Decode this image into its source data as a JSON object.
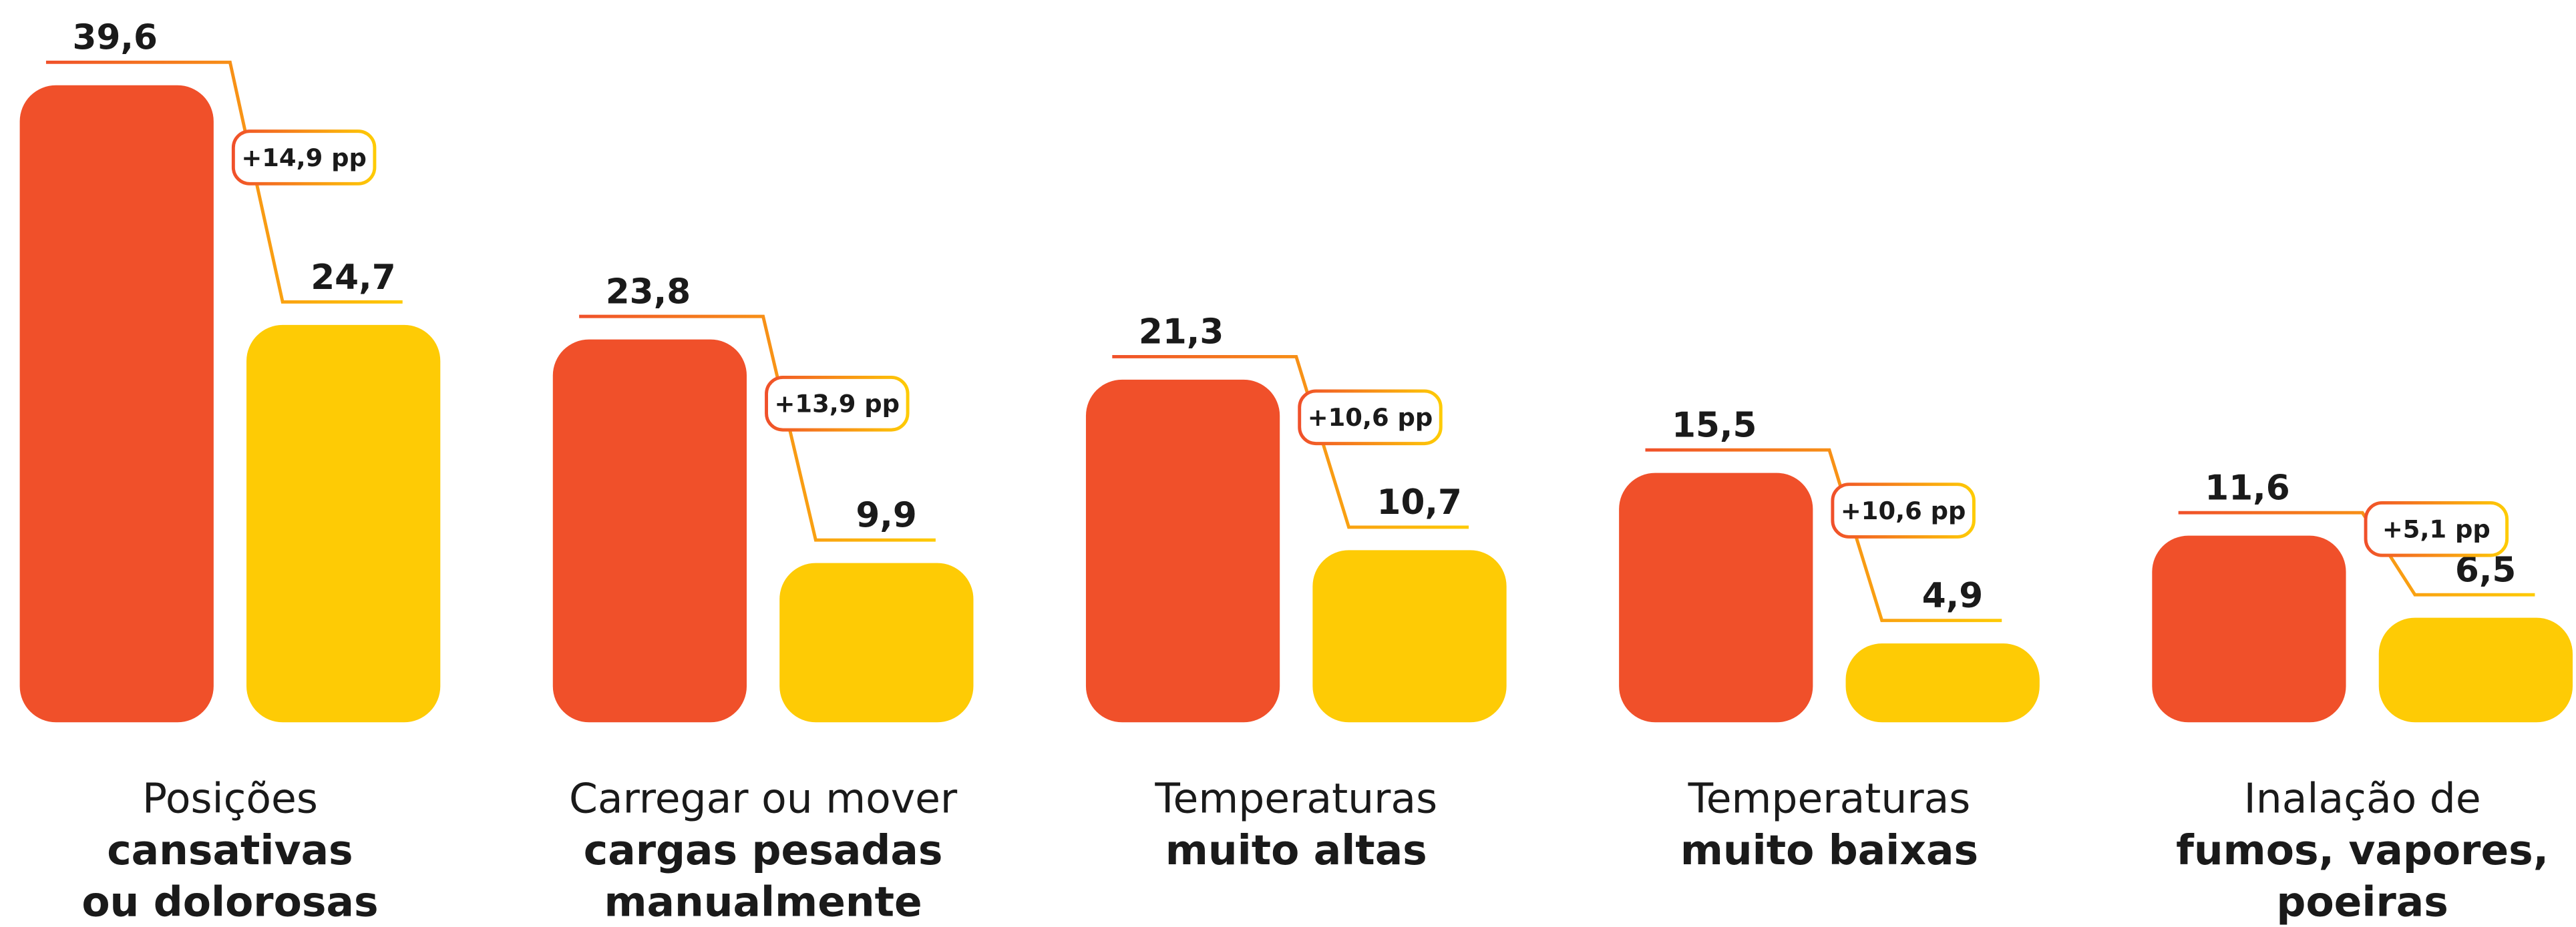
{
  "chart_data": {
    "type": "bar",
    "categories": [
      [
        "Posições",
        "cansativas",
        "ou dolorosas"
      ],
      [
        "Carregar ou mover",
        "cargas pesadas",
        "manualmente"
      ],
      [
        "Temperaturas",
        "muito altas"
      ],
      [
        "Temperaturas",
        "muito baixas"
      ],
      [
        "Inalação de",
        "fumos, vapores,",
        "poeiras"
      ]
    ],
    "series": [
      {
        "color": "#f0502a",
        "values": [
          39.6,
          23.8,
          21.3,
          15.5,
          11.6
        ],
        "value_labels": [
          "39,6",
          "23,8",
          "21,3",
          "15,5",
          "11,6"
        ]
      },
      {
        "color": "#fecb05",
        "values": [
          24.7,
          9.9,
          10.7,
          4.9,
          6.5
        ],
        "value_labels": [
          "24,7",
          "9,9",
          "10,7",
          "4,9",
          "6,5"
        ]
      }
    ],
    "annotations": [
      "+14,9 pp",
      "+13,9 pp",
      "+10,6 pp",
      "+10,6 pp",
      "+5,1 pp"
    ]
  }
}
